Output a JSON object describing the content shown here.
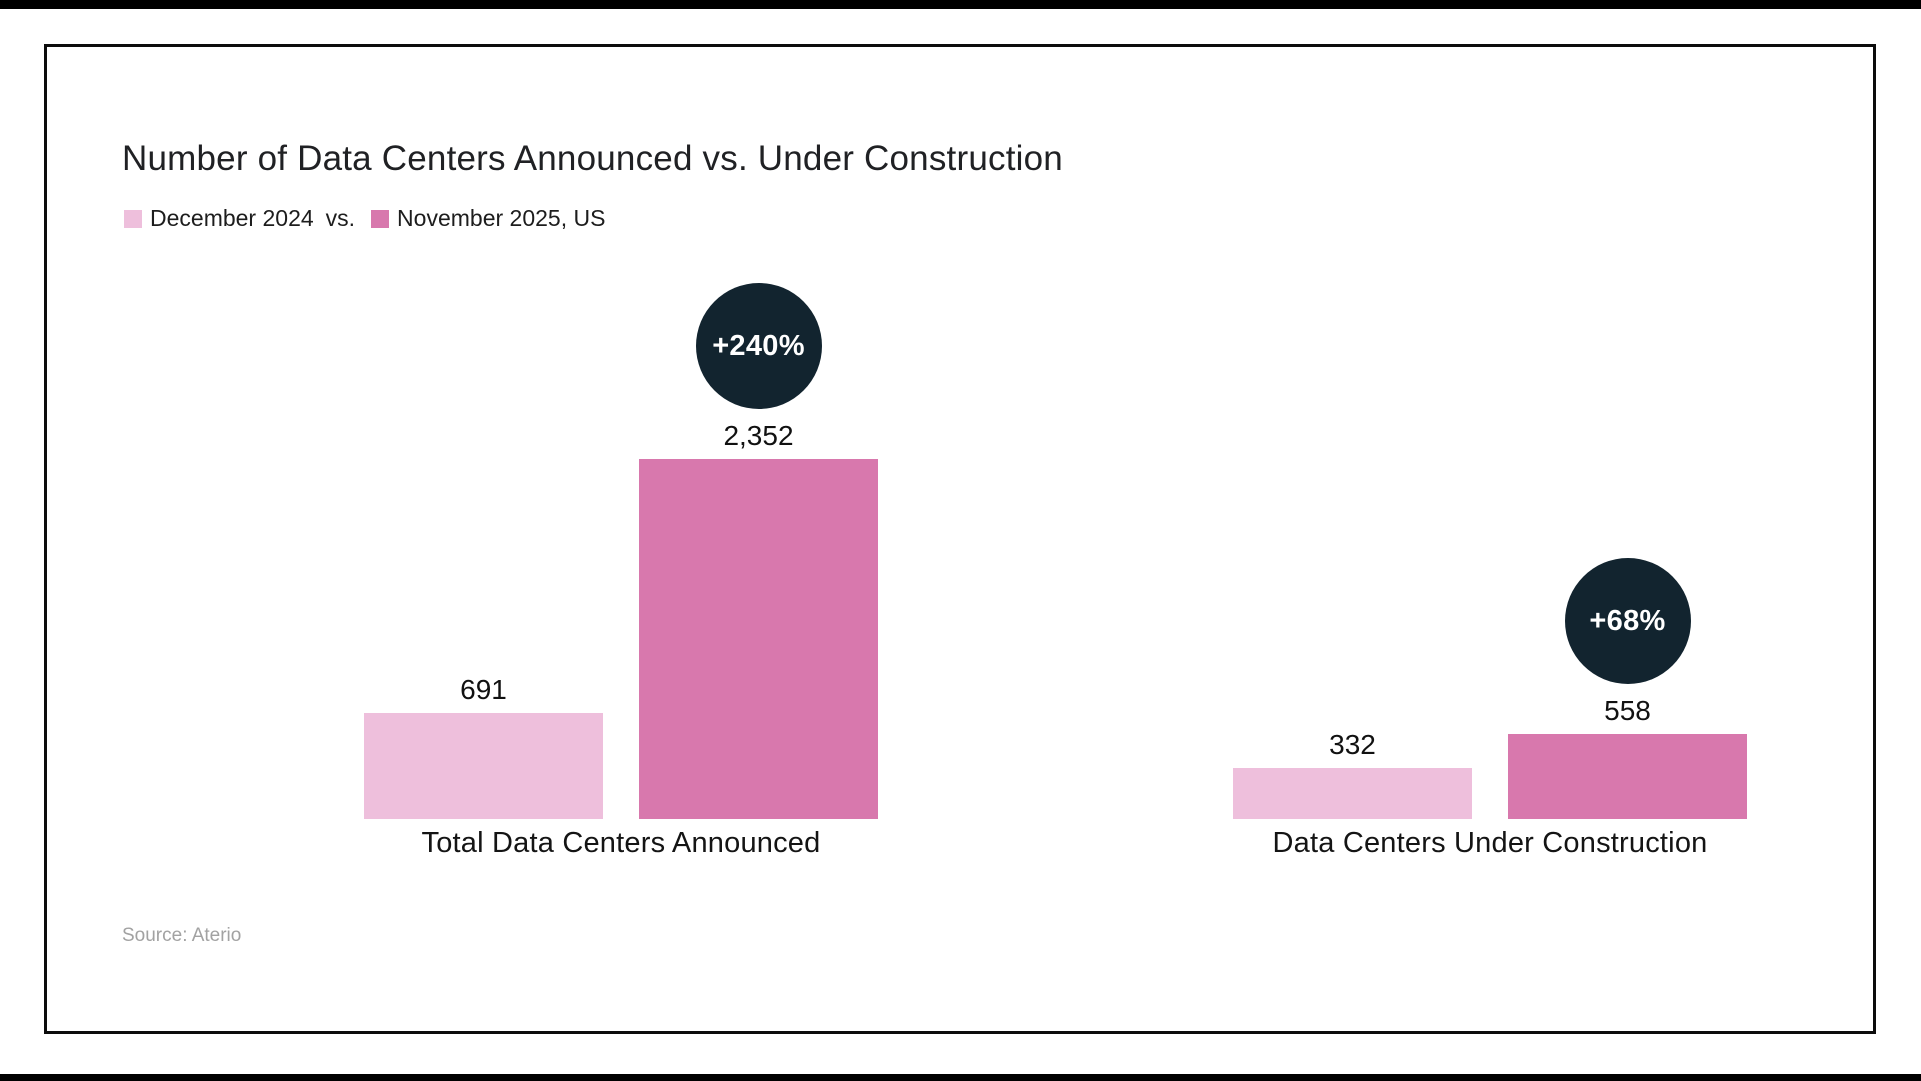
{
  "title": "Number of Data Centers Announced vs. Under Construction",
  "legend": {
    "series1_label": "December 2024",
    "separator": "vs.",
    "series2_label": "November 2025, US"
  },
  "source": "Source: Aterio",
  "colors": {
    "series1": "#eebfdc",
    "series2": "#d878ad",
    "badge_bg": "#12242f",
    "badge_text": "#ffffff"
  },
  "chart_data": {
    "type": "bar",
    "title": "Number of Data Centers Announced vs. Under Construction",
    "subtitle": "December 2024 vs. November 2025, US",
    "categories": [
      "Total Data Centers Announced",
      "Data Centers Under Construction"
    ],
    "series": [
      {
        "name": "December 2024",
        "values": [
          691,
          332
        ]
      },
      {
        "name": "November 2025, US",
        "values": [
          2352,
          558
        ]
      }
    ],
    "value_labels": [
      [
        "691",
        "2,352"
      ],
      [
        "332",
        "558"
      ]
    ],
    "change_badges": [
      "+240%",
      "+68%"
    ],
    "xlabel": "",
    "ylabel": "",
    "ylim": [
      0,
      2352
    ],
    "grid": false,
    "legend_position": "top-left"
  }
}
